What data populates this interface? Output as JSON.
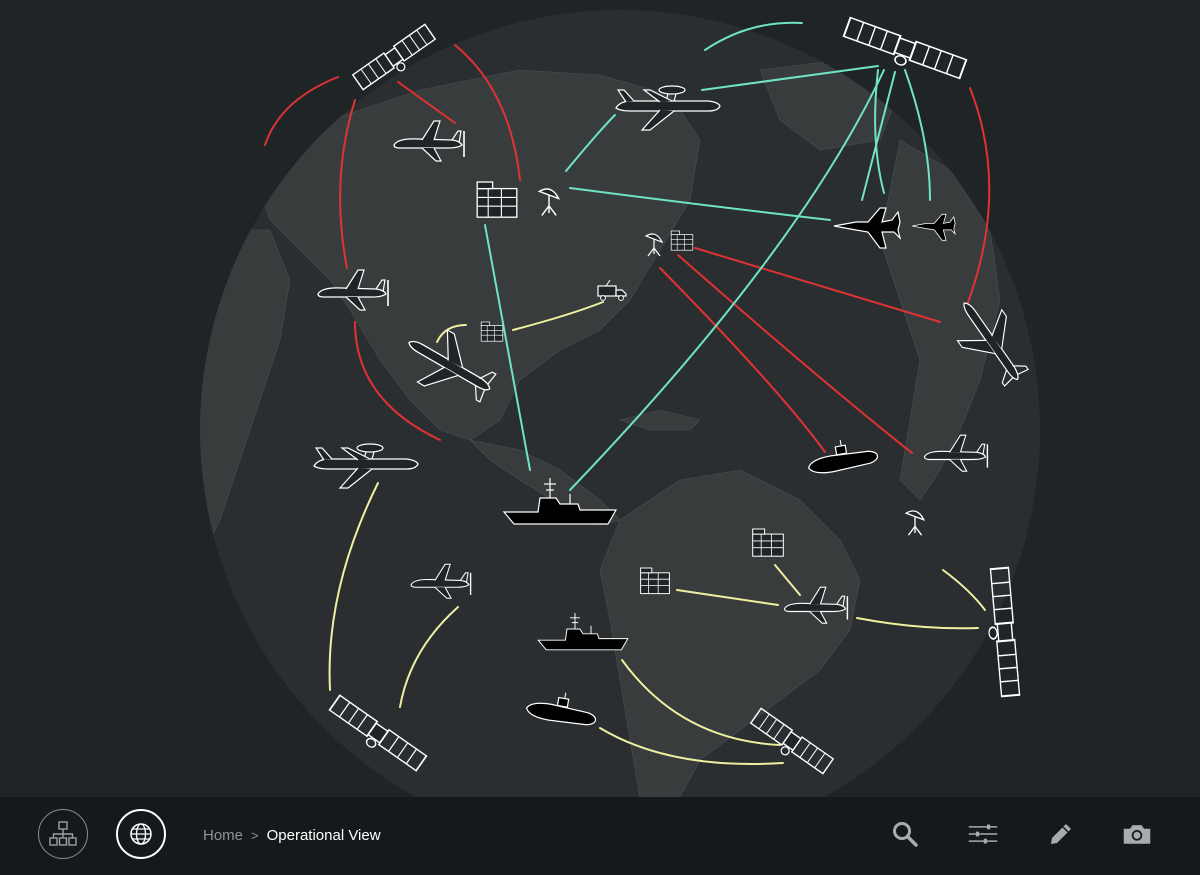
{
  "breadcrumb": {
    "home": "Home",
    "separator": ">",
    "current": "Operational View"
  },
  "toolbar": {
    "left_buttons": [
      "hierarchy-icon",
      "globe-icon"
    ],
    "right_tools": [
      "search-icon",
      "filter-sliders-icon",
      "pencil-icon",
      "camera-icon"
    ]
  },
  "map": {
    "background": "#1f2426",
    "globe_fill": "#2a2e30",
    "land_fill": "#383b3c",
    "link_colors": {
      "red": "#e03232",
      "teal": "#6fe3c4",
      "yellow": "#eef0a0"
    },
    "assets": [
      "satellite-icon",
      "drone-icon",
      "awacs-plane-icon",
      "jet-fighter-icon",
      "airliner-icon",
      "headquarters-building-icon",
      "radar-dish-icon",
      "truck-icon",
      "warship-icon",
      "submarine-icon"
    ]
  }
}
